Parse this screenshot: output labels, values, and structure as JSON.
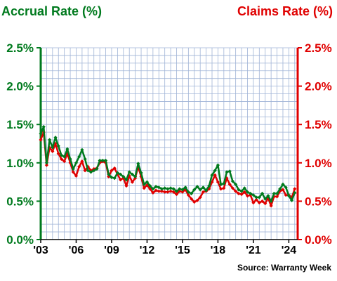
{
  "chart_data": {
    "type": "line",
    "title_left": "Accrual Rate (%)",
    "title_right": "Claims Rate (%)",
    "source": "Source: Warranty Week",
    "colors": {
      "accrual": "#007a1e",
      "claims": "#e00000",
      "grid": "#9fb3d6",
      "plot_bg": "#ffffff"
    },
    "ylim": [
      0,
      2.5
    ],
    "y_ticks": [
      "0.0%",
      "0.5%",
      "1.0%",
      "1.5%",
      "2.0%",
      "2.5%"
    ],
    "y_tick_values": [
      0,
      0.5,
      1.0,
      1.5,
      2.0,
      2.5
    ],
    "xlim": [
      2003,
      2024.75
    ],
    "x_ticks": [
      "'03",
      "'06",
      "'09",
      "'12",
      "'15",
      "'18",
      "'21",
      "'24"
    ],
    "x_tick_values": [
      2003,
      2006,
      2009,
      2012,
      2015,
      2018,
      2021,
      2024
    ],
    "grid": true,
    "series": [
      {
        "name": "Accrual Rate (%)",
        "color": "#007a1e",
        "axis": "left",
        "x": [
          2003.0,
          2003.25,
          2003.5,
          2003.75,
          2004.0,
          2004.25,
          2004.5,
          2004.75,
          2005.0,
          2005.25,
          2005.5,
          2005.75,
          2006.0,
          2006.25,
          2006.5,
          2006.75,
          2007.0,
          2007.25,
          2007.5,
          2007.75,
          2008.0,
          2008.25,
          2008.5,
          2008.75,
          2009.0,
          2009.25,
          2009.5,
          2009.75,
          2010.0,
          2010.25,
          2010.5,
          2010.75,
          2011.0,
          2011.25,
          2011.5,
          2011.75,
          2012.0,
          2012.25,
          2012.5,
          2012.75,
          2013.0,
          2013.25,
          2013.5,
          2013.75,
          2014.0,
          2014.25,
          2014.5,
          2014.75,
          2015.0,
          2015.25,
          2015.5,
          2015.75,
          2016.0,
          2016.25,
          2016.5,
          2016.75,
          2017.0,
          2017.25,
          2017.5,
          2017.75,
          2018.0,
          2018.25,
          2018.5,
          2018.75,
          2019.0,
          2019.25,
          2019.5,
          2019.75,
          2020.0,
          2020.25,
          2020.5,
          2020.75,
          2021.0,
          2021.25,
          2021.5,
          2021.75,
          2022.0,
          2022.25,
          2022.5,
          2022.75,
          2023.0,
          2023.25,
          2023.5,
          2023.75,
          2024.0,
          2024.25,
          2024.5
        ],
        "values": [
          1.38,
          1.47,
          1.0,
          1.3,
          1.2,
          1.33,
          1.22,
          1.1,
          1.08,
          1.18,
          1.05,
          0.92,
          1.0,
          1.08,
          1.17,
          1.05,
          0.9,
          0.88,
          0.9,
          0.92,
          1.03,
          1.03,
          1.03,
          0.85,
          0.81,
          0.8,
          0.87,
          0.85,
          0.82,
          0.78,
          0.88,
          0.85,
          0.82,
          0.99,
          0.87,
          0.72,
          0.75,
          0.7,
          0.66,
          0.69,
          0.68,
          0.66,
          0.67,
          0.66,
          0.67,
          0.66,
          0.63,
          0.66,
          0.65,
          0.68,
          0.62,
          0.6,
          0.65,
          0.69,
          0.65,
          0.68,
          0.64,
          0.7,
          0.84,
          0.9,
          0.97,
          0.72,
          0.73,
          0.88,
          0.89,
          0.76,
          0.72,
          0.65,
          0.63,
          0.67,
          0.62,
          0.6,
          0.58,
          0.55,
          0.55,
          0.6,
          0.53,
          0.57,
          0.5,
          0.6,
          0.6,
          0.66,
          0.72,
          0.68,
          0.57,
          0.51,
          0.61
        ]
      },
      {
        "name": "Claims Rate (%)",
        "color": "#e00000",
        "axis": "right",
        "x": [
          2003.0,
          2003.25,
          2003.5,
          2003.75,
          2004.0,
          2004.25,
          2004.5,
          2004.75,
          2005.0,
          2005.25,
          2005.5,
          2005.75,
          2006.0,
          2006.25,
          2006.5,
          2006.75,
          2007.0,
          2007.25,
          2007.5,
          2007.75,
          2008.0,
          2008.25,
          2008.5,
          2008.75,
          2009.0,
          2009.25,
          2009.5,
          2009.75,
          2010.0,
          2010.25,
          2010.5,
          2010.75,
          2011.0,
          2011.25,
          2011.5,
          2011.75,
          2012.0,
          2012.25,
          2012.5,
          2012.75,
          2013.0,
          2013.25,
          2013.5,
          2013.75,
          2014.0,
          2014.25,
          2014.5,
          2014.75,
          2015.0,
          2015.25,
          2015.5,
          2015.75,
          2016.0,
          2016.25,
          2016.5,
          2016.75,
          2017.0,
          2017.25,
          2017.5,
          2017.75,
          2018.0,
          2018.25,
          2018.5,
          2018.75,
          2019.0,
          2019.25,
          2019.5,
          2019.75,
          2020.0,
          2020.25,
          2020.5,
          2020.75,
          2021.0,
          2021.25,
          2021.5,
          2021.75,
          2022.0,
          2022.25,
          2022.5,
          2022.75,
          2023.0,
          2023.25,
          2023.5,
          2023.75,
          2024.0,
          2024.25,
          2024.5
        ],
        "values": [
          1.3,
          1.4,
          0.97,
          1.2,
          1.15,
          1.25,
          1.12,
          1.05,
          1.02,
          1.12,
          1.0,
          0.88,
          0.83,
          0.95,
          1.02,
          0.9,
          0.95,
          0.9,
          0.92,
          0.93,
          1.0,
          1.02,
          1.0,
          0.82,
          0.9,
          0.93,
          0.85,
          0.78,
          0.8,
          0.7,
          0.83,
          0.75,
          0.8,
          0.95,
          0.82,
          0.67,
          0.71,
          0.66,
          0.61,
          0.64,
          0.63,
          0.63,
          0.62,
          0.62,
          0.63,
          0.62,
          0.59,
          0.63,
          0.62,
          0.65,
          0.58,
          0.53,
          0.49,
          0.51,
          0.55,
          0.62,
          0.63,
          0.66,
          0.75,
          0.84,
          0.75,
          0.66,
          0.67,
          0.8,
          0.72,
          0.67,
          0.63,
          0.6,
          0.59,
          0.62,
          0.57,
          0.58,
          0.48,
          0.52,
          0.48,
          0.5,
          0.47,
          0.54,
          0.44,
          0.56,
          0.56,
          0.63,
          0.65,
          0.58,
          0.58,
          0.55,
          0.66
        ]
      }
    ]
  }
}
